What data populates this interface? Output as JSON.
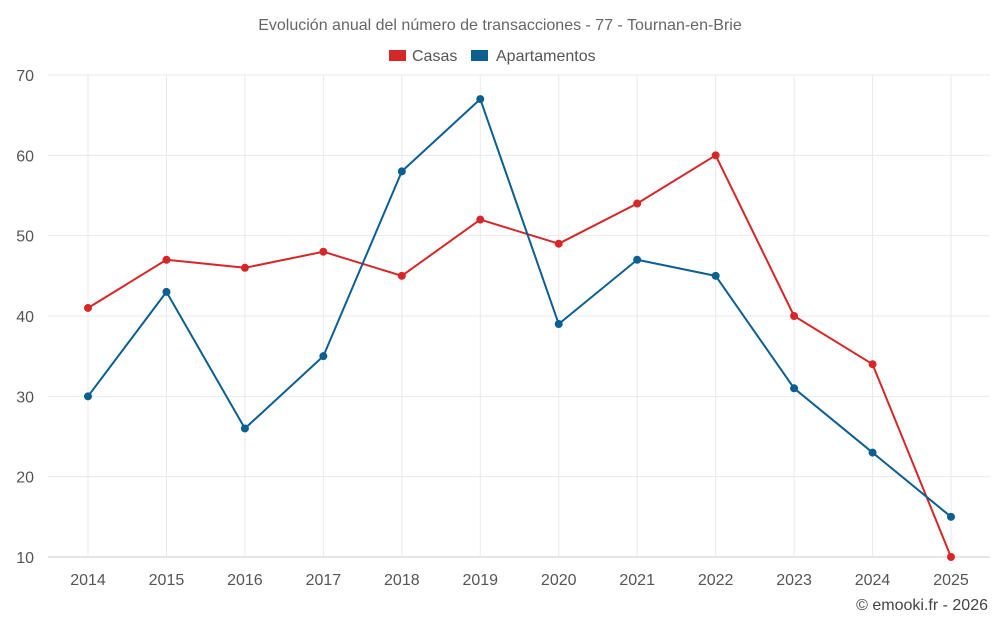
{
  "chart_data": {
    "type": "line",
    "title": "Evolución anual del número de transacciones - 77 - Tournan-en-Brie",
    "categories": [
      "2014",
      "2015",
      "2016",
      "2017",
      "2018",
      "2019",
      "2020",
      "2021",
      "2022",
      "2023",
      "2024",
      "2025"
    ],
    "series": [
      {
        "name": "Casas",
        "color": "#d62728",
        "values": [
          41,
          47,
          46,
          48,
          45,
          52,
          49,
          54,
          60,
          40,
          34,
          10
        ]
      },
      {
        "name": "Apartamentos",
        "color": "#0b5f91",
        "values": [
          30,
          43,
          26,
          35,
          58,
          67,
          39,
          47,
          45,
          31,
          23,
          15
        ]
      }
    ],
    "ylim": [
      10,
      70
    ],
    "yticks": [
      10,
      20,
      30,
      40,
      50,
      60,
      70
    ],
    "ytick_labels": [
      "10",
      "20",
      "30",
      "40",
      "50",
      "60",
      "70"
    ],
    "grid": true,
    "legend_position": "top-center",
    "xlabel": "",
    "ylabel": ""
  },
  "credit": "© emooki.fr - 2026"
}
